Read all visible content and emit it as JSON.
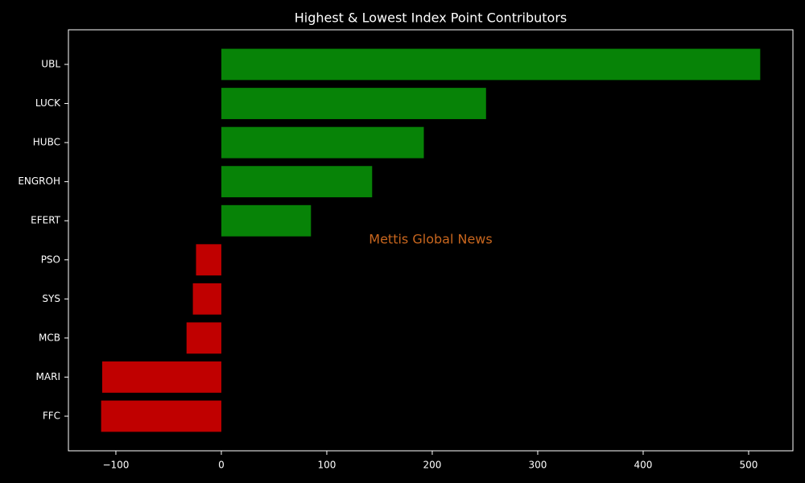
{
  "chart_data": {
    "type": "barh",
    "title": "Highest & Lowest Index Point Contributors",
    "watermark": "Mettis Global News",
    "categories": [
      "UBL",
      "LUCK",
      "HUBC",
      "ENGROH",
      "EFERT",
      "PSO",
      "SYS",
      "MCB",
      "MARI",
      "FFC"
    ],
    "values": [
      511,
      251,
      192,
      143,
      85,
      -24,
      -27,
      -33,
      -113,
      -114
    ],
    "positive_color": "#078307",
    "negative_color": "#c00000",
    "xlim": [
      -145,
      542
    ],
    "xticks": [
      {
        "value": -100,
        "label": "−100"
      },
      0,
      100,
      200,
      300,
      400,
      500
    ]
  }
}
